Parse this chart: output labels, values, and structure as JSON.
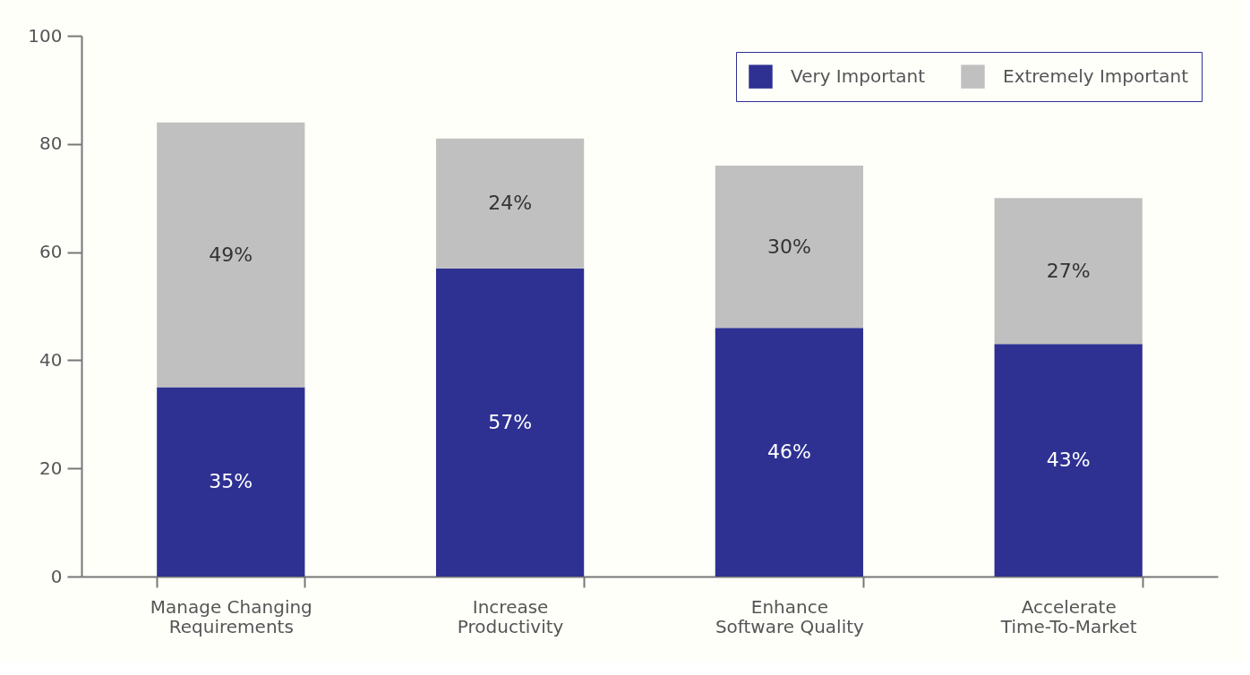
{
  "chart_data": {
    "type": "bar",
    "stacked": true,
    "categories": [
      "Manage Changing\nRequirements",
      "Increase\nProductivity",
      "Enhance\nSoftware Quality",
      "Accelerate\nTime-To-Market"
    ],
    "series": [
      {
        "name": "Very Important",
        "color": "#2e3192",
        "values": [
          35,
          57,
          46,
          43
        ],
        "value_labels": [
          "35%",
          "57%",
          "46%",
          "43%"
        ]
      },
      {
        "name": "Extremely Important",
        "color": "#c0c0c0",
        "values": [
          49,
          24,
          30,
          27
        ],
        "value_labels": [
          "49%",
          "24%",
          "30%",
          "27%"
        ]
      }
    ],
    "ylim": [
      0,
      100
    ],
    "yticks": [
      0,
      20,
      40,
      60,
      80,
      100
    ],
    "grid": false,
    "legend": "top right"
  }
}
